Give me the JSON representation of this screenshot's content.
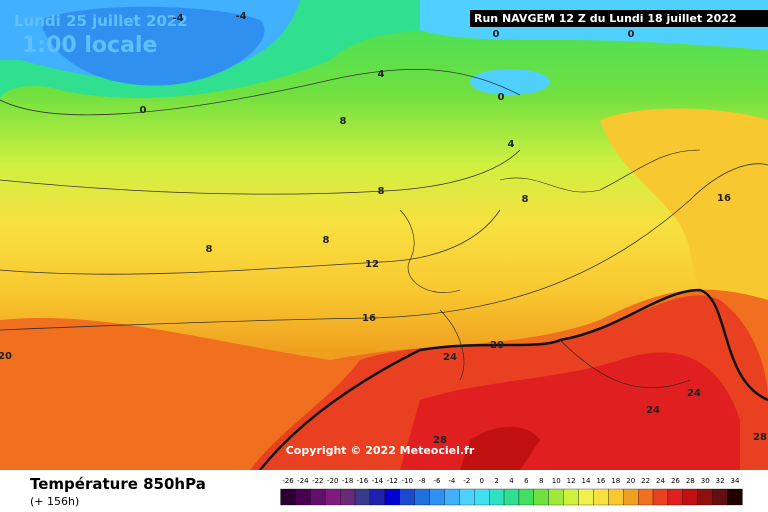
{
  "header": {
    "date": "Lundi 25 juillet 2022",
    "time": "1:00 locale",
    "run": "Run NAVGEM 12 Z du Lundi 18 juillet 2022"
  },
  "map": {
    "contour_labels": [
      -4,
      -4,
      0,
      0,
      4,
      0,
      0,
      8,
      4,
      8,
      16,
      8,
      8,
      8,
      12,
      16,
      20,
      20,
      24,
      24,
      24,
      28,
      28
    ]
  },
  "copyright": "Copyright © 2022 Meteociel.fr",
  "footer": {
    "title": "Température 850hPa",
    "lead": "(+ 156h)"
  },
  "legend": {
    "values": [
      -26,
      -24,
      -22,
      -20,
      -18,
      -16,
      -14,
      -12,
      -10,
      -8,
      -6,
      -4,
      -2,
      0,
      2,
      4,
      6,
      8,
      10,
      12,
      14,
      16,
      18,
      20,
      22,
      24,
      26,
      28,
      30,
      32,
      34
    ],
    "colors": [
      "#2a0030",
      "#4a0050",
      "#60106a",
      "#801a80",
      "#6a2a7a",
      "#3a3a8a",
      "#2020b0",
      "#0000d0",
      "#1a4ad0",
      "#2070e0",
      "#3090f0",
      "#40b0ff",
      "#50d0ff",
      "#40e0f0",
      "#30e0c0",
      "#30e090",
      "#40e060",
      "#70e040",
      "#a0e840",
      "#d0f040",
      "#f0f050",
      "#f8e040",
      "#f8c830",
      "#f0a020",
      "#f07020",
      "#e84020",
      "#e02020",
      "#c01010",
      "#901010",
      "#601010",
      "#200000"
    ]
  }
}
